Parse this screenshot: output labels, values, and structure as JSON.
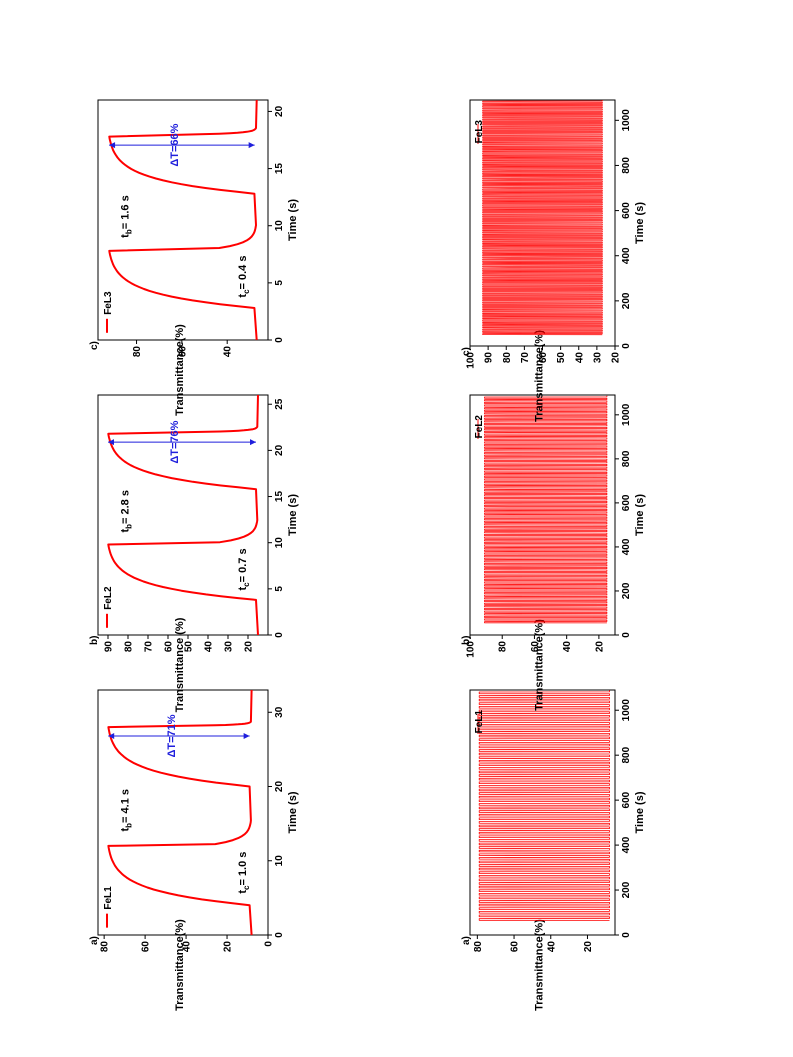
{
  "colors": {
    "trace": "#ff0000",
    "delta": "#1f1fdc",
    "axis": "#000000"
  },
  "chart_data": [
    {
      "type": "line",
      "panel_label": "a)",
      "group": "single-cycle",
      "xlabel": "Time (s)",
      "ylabel": "Transmittance(%)",
      "xlim": [
        0,
        33
      ],
      "ylim": [
        0,
        83
      ],
      "xticks": [
        0,
        10,
        20,
        30
      ],
      "yticks": [
        0,
        20,
        40,
        60,
        80
      ],
      "legend": "FeL1",
      "legend_position": "top-left",
      "t_low": 8,
      "t_high": 79,
      "bleach_times": [
        4.0,
        20.0
      ],
      "color_times": [
        12.0,
        28.0
      ],
      "t_end": 33,
      "series": [
        {
          "name": "FeL1"
        }
      ],
      "annotations": {
        "t_c": "t",
        "t_c_sub": "c",
        "t_c_val": "= 1.0 s",
        "t_b": "t",
        "t_b_sub": "b",
        "t_b_val": "= 4.1 s",
        "delta": "ΔT=71%"
      }
    },
    {
      "type": "line",
      "panel_label": "b)",
      "group": "single-cycle",
      "xlabel": "Time (s)",
      "ylabel": "Transmittance (%)",
      "xlim": [
        0,
        26
      ],
      "ylim": [
        10,
        95
      ],
      "xticks": [
        0,
        5,
        10,
        15,
        20,
        25
      ],
      "yticks": [
        20,
        30,
        40,
        50,
        60,
        70,
        80,
        90
      ],
      "legend": "FeL2",
      "legend_position": "top-left",
      "t_low": 15,
      "t_high": 91,
      "bleach_times": [
        3.8,
        15.8
      ],
      "color_times": [
        9.8,
        21.8
      ],
      "t_end": 26,
      "series": [
        {
          "name": "FeL2"
        }
      ],
      "annotations": {
        "t_c": "t",
        "t_c_sub": "c",
        "t_c_val": "= 0.7 s",
        "t_b": "t",
        "t_b_sub": "b",
        "t_b_val": "= 2.8 s",
        "delta": "ΔT=76%"
      }
    },
    {
      "type": "line",
      "panel_label": "c)",
      "group": "single-cycle",
      "xlabel": "Time (s)",
      "ylabel": "Transmittance(%)",
      "xlim": [
        0,
        21
      ],
      "ylim": [
        22,
        97
      ],
      "xticks": [
        0,
        5,
        10,
        15,
        20
      ],
      "yticks": [
        40,
        60,
        80
      ],
      "legend": "FeL3",
      "legend_position": "top-left",
      "t_low": 27,
      "t_high": 93,
      "bleach_times": [
        2.8,
        12.8
      ],
      "color_times": [
        7.8,
        17.8
      ],
      "t_end": 21,
      "series": [
        {
          "name": "FeL3"
        }
      ],
      "annotations": {
        "t_c": "t",
        "t_c_sub": "c",
        "t_c_val": "= 0.4 s",
        "t_b": "t",
        "t_b_sub": "b",
        "t_b_val": "= 1.6 s",
        "delta": "ΔT=66%"
      }
    },
    {
      "type": "line",
      "panel_label": "a)",
      "group": "long-cycling",
      "xlabel": "Time (s)",
      "ylabel": "Transmittance(%)",
      "xlim": [
        0,
        1090
      ],
      "ylim": [
        5,
        84
      ],
      "xticks": [
        0,
        200,
        400,
        600,
        800,
        1000
      ],
      "yticks": [
        20,
        40,
        60,
        80
      ],
      "legend": "FeL1",
      "legend_position": "top-right",
      "t_low": 8,
      "t_high": 79,
      "x_start": 65,
      "period": 16,
      "series": [
        {
          "name": "FeL1"
        }
      ]
    },
    {
      "type": "line",
      "panel_label": "b)",
      "group": "long-cycling",
      "xlabel": "Time (s)",
      "ylabel": "Transmittance(%)",
      "xlim": [
        0,
        1090
      ],
      "ylim": [
        10,
        100
      ],
      "xticks": [
        0,
        200,
        400,
        600,
        800,
        1000
      ],
      "yticks": [
        20,
        40,
        60,
        80,
        100
      ],
      "legend": "FeL2",
      "legend_position": "top-right",
      "t_low": 15,
      "t_high": 91,
      "x_start": 55,
      "period": 12,
      "series": [
        {
          "name": "FeL2"
        }
      ]
    },
    {
      "type": "line",
      "panel_label": "c)",
      "group": "long-cycling",
      "xlabel": "Time (s)",
      "ylabel": "Transmittance(%)",
      "xlim": [
        0,
        1090
      ],
      "ylim": [
        20,
        100
      ],
      "xticks": [
        0,
        200,
        400,
        600,
        800,
        1000
      ],
      "yticks": [
        20,
        30,
        40,
        50,
        60,
        70,
        80,
        90,
        100
      ],
      "legend": "FeL3",
      "legend_position": "top-right",
      "t_low": 27,
      "t_high": 93,
      "x_start": 50,
      "period": 10,
      "series": [
        {
          "name": "FeL3"
        }
      ]
    }
  ]
}
